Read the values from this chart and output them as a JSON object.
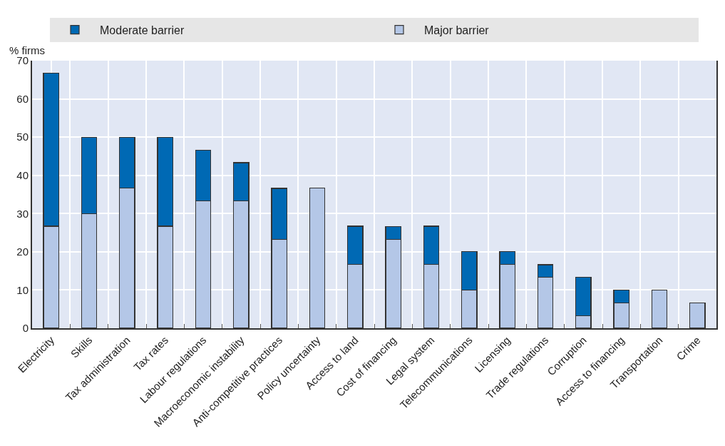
{
  "chart_data": {
    "type": "bar",
    "stacked": true,
    "ylabel": "% firms",
    "categories": [
      "Electricity",
      "Skills",
      "Tax administration",
      "Tax rates",
      "Labour regulations",
      "Macroeconomic instability",
      "Anti-competitive practices",
      "Policy uncertainty",
      "Access to land",
      "Cost of financing",
      "Legal system",
      "Telecommunications",
      "Licensing",
      "Trade regulations",
      "Corruption",
      "Access to financing",
      "Transportation",
      "Crime"
    ],
    "series": [
      {
        "name": "Major barrier",
        "color": "#b4c7e7",
        "values": [
          26.7,
          30,
          36.7,
          26.7,
          33.3,
          33.3,
          23.3,
          36.7,
          16.7,
          23.3,
          16.7,
          10,
          16.7,
          13.3,
          3.3,
          6.7,
          10,
          6.7
        ]
      },
      {
        "name": "Moderate barrier",
        "color": "#0069b4",
        "values": [
          40,
          20,
          13.3,
          23.3,
          13.3,
          10,
          13.3,
          null,
          10,
          3.3,
          10,
          10,
          3.3,
          3.3,
          10,
          3.3,
          null,
          null
        ]
      }
    ],
    "ylim": [
      0,
      70
    ],
    "yticks": [
      0,
      10,
      20,
      30,
      40,
      50,
      60,
      70
    ],
    "grid": true,
    "legend": "top"
  }
}
